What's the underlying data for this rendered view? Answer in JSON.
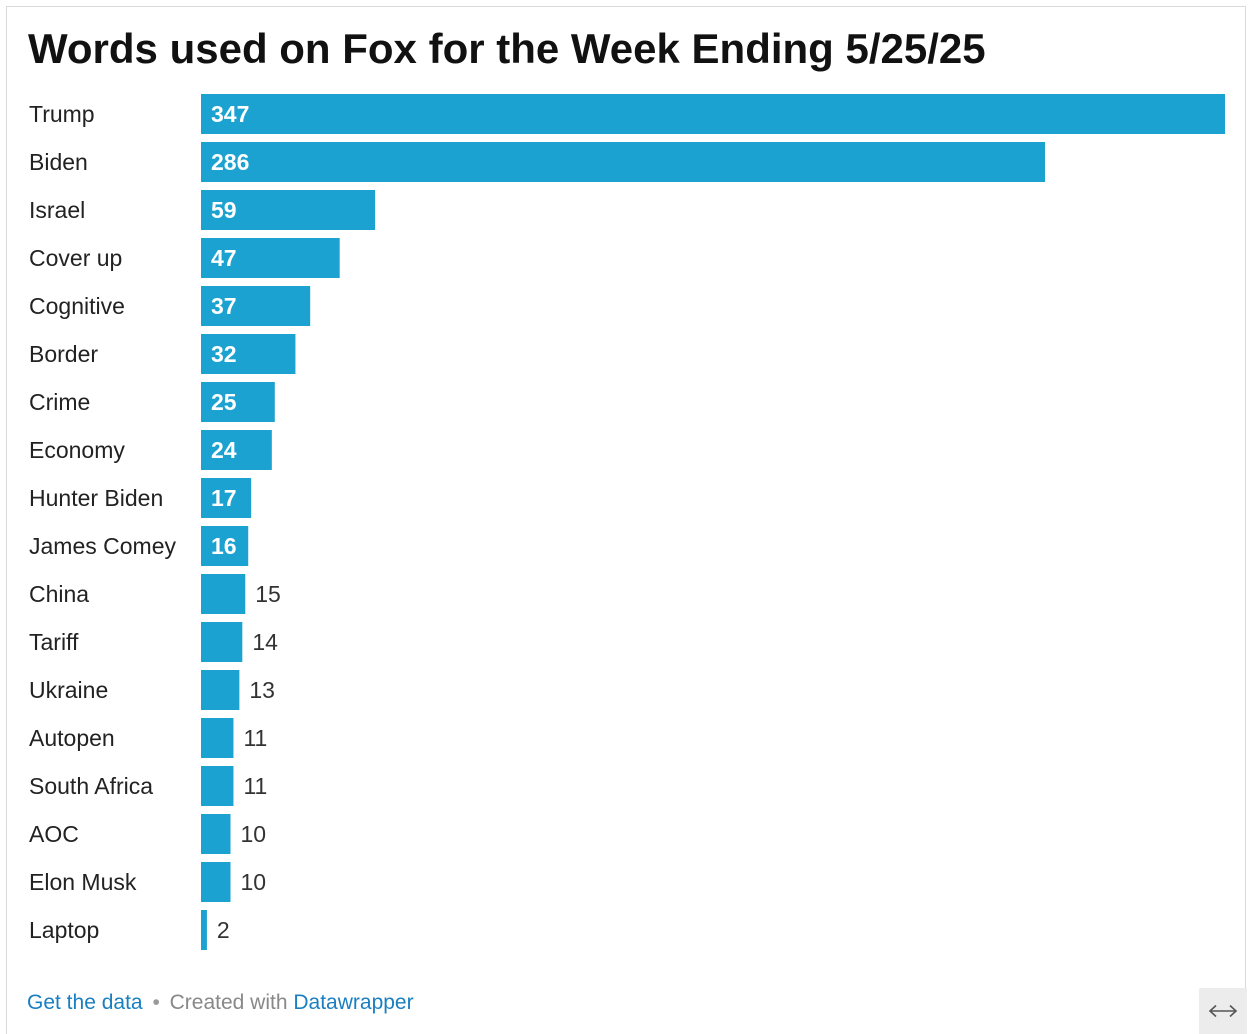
{
  "chart_data": {
    "type": "bar",
    "orientation": "horizontal",
    "title": "Words used on Fox for the Week Ending 5/25/25",
    "categories": [
      "Trump",
      "Biden",
      "Israel",
      "Cover up",
      "Cognitive",
      "Border",
      "Crime",
      "Economy",
      "Hunter Biden",
      "James Comey",
      "China",
      "Tariff",
      "Ukraine",
      "Autopen",
      "South Africa",
      "AOC",
      "Elon Musk",
      "Laptop"
    ],
    "values": [
      347,
      286,
      59,
      47,
      37,
      32,
      25,
      24,
      17,
      16,
      15,
      14,
      13,
      11,
      11,
      10,
      10,
      2
    ],
    "xlabel": "",
    "ylabel": "",
    "xlim": [
      0,
      347
    ],
    "grid": false,
    "legend": "none",
    "bar_color": "#1ba2d0",
    "label_inside_color": "#ffffff",
    "label_outside_color": "#333333"
  },
  "footer": {
    "get_data_label": "Get the data",
    "separator": "•",
    "created_with_label": "Created with",
    "tool_label": "Datawrapper",
    "link_color": "#1a7fc1"
  },
  "controls": {
    "expand_icon": "expand-horizontal-icon"
  }
}
